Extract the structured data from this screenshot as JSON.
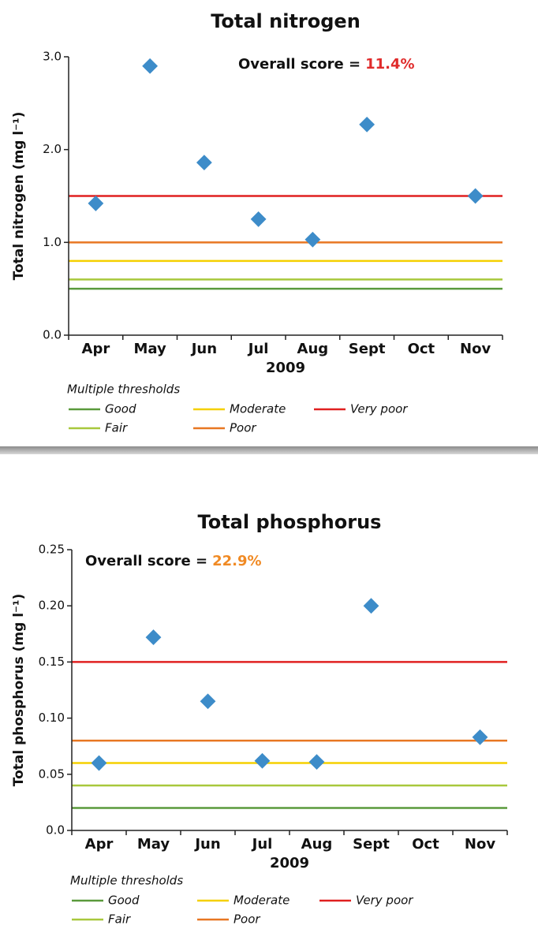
{
  "chart_data": [
    {
      "type": "scatter",
      "title": "Total nitrogen",
      "annotation": {
        "text": "Overall score =",
        "score": "11.4%",
        "score_color": "#e02b2b"
      },
      "x_label": "2009",
      "y_label": "Total nitrogen (mg l⁻¹)",
      "categories": [
        "Apr",
        "May",
        "Jun",
        "Jul",
        "Aug",
        "Sept",
        "Oct",
        "Nov"
      ],
      "values": [
        1.42,
        2.9,
        1.86,
        1.25,
        1.03,
        2.27,
        null,
        1.5
      ],
      "color": "#3d8cc9",
      "ylim": [
        0,
        3
      ],
      "yticks": [
        {
          "value": 0,
          "label": "0.0"
        },
        {
          "value": 1,
          "label": "1.0"
        },
        {
          "value": 2,
          "label": "2.0"
        },
        {
          "value": 3,
          "label": "3.0"
        }
      ],
      "thresholds": {
        "title": "Multiple thresholds",
        "items": [
          {
            "name": "Good",
            "value": 0.5,
            "color": "#5a9a3c"
          },
          {
            "name": "Fair",
            "value": 0.6,
            "color": "#a8c83c"
          },
          {
            "name": "Moderate",
            "value": 0.8,
            "color": "#f5d000"
          },
          {
            "name": "Poor",
            "value": 1.0,
            "color": "#e87722"
          },
          {
            "name": "Very poor",
            "value": 1.5,
            "color": "#e02020"
          }
        ]
      }
    },
    {
      "type": "scatter",
      "title": "Total phosphorus",
      "annotation": {
        "text": "Overall score =",
        "score": "22.9%",
        "score_color": "#f08a24"
      },
      "x_label": "2009",
      "y_label": "Total phosphorus (mg l⁻¹)",
      "categories": [
        "Apr",
        "May",
        "Jun",
        "Jul",
        "Aug",
        "Sept",
        "Oct",
        "Nov"
      ],
      "values": [
        0.06,
        0.172,
        0.115,
        0.062,
        0.061,
        0.2,
        null,
        0.083
      ],
      "color": "#3d8cc9",
      "ylim": [
        0,
        0.25
      ],
      "yticks": [
        {
          "value": 0,
          "label": "0.0"
        },
        0.05,
        {
          "value": 0.1,
          "label": "0.10"
        },
        0.15,
        {
          "value": 0.2,
          "label": "0.20"
        },
        0.25
      ],
      "thresholds": {
        "title": "Multiple thresholds",
        "items": [
          {
            "name": "Good",
            "value": 0.02,
            "color": "#5a9a3c"
          },
          {
            "name": "Fair",
            "value": 0.04,
            "color": "#a8c83c"
          },
          {
            "name": "Moderate",
            "value": 0.06,
            "color": "#f5d000"
          },
          {
            "name": "Poor",
            "value": 0.08,
            "color": "#e87722"
          },
          {
            "name": "Very poor",
            "value": 0.15,
            "color": "#e02020"
          }
        ]
      }
    }
  ]
}
